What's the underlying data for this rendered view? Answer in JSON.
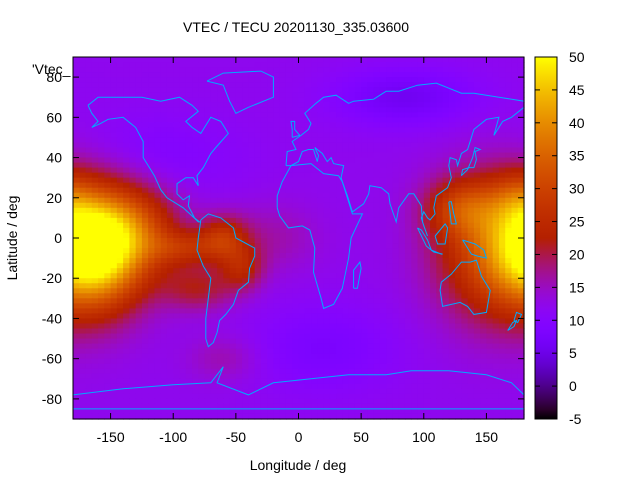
{
  "chart_data": {
    "type": "heatmap",
    "title": "VTEC / TECU 20201130_335.03600",
    "plot_label": "'Vtec_",
    "xlabel": "Longitude / deg",
    "ylabel": "Latitude / deg",
    "xlim": [
      -180,
      180
    ],
    "ylim": [
      -90,
      90
    ],
    "x_ticks": [
      "-150",
      "-100",
      "-50",
      "0",
      "50",
      "100",
      "150"
    ],
    "y_ticks": [
      "-80",
      "-60",
      "-40",
      "-20",
      "0",
      "20",
      "40",
      "60",
      "80"
    ],
    "colorbar": {
      "min": -5,
      "max": 50,
      "ticks": [
        "-5",
        "0",
        "5",
        "10",
        "15",
        "20",
        "25",
        "30",
        "35",
        "40",
        "45",
        "50"
      ]
    },
    "background_level": 12,
    "features": [
      {
        "lon": -160,
        "lat": -5,
        "sx": 28,
        "sy": 20,
        "amp": 36
      },
      {
        "lon": -125,
        "lat": 5,
        "sx": 25,
        "sy": 15,
        "amp": 10
      },
      {
        "lon": -90,
        "lat": -5,
        "sx": 20,
        "sy": 6,
        "amp": 10
      },
      {
        "lon": -60,
        "lat": 0,
        "sx": 14,
        "sy": 8,
        "amp": 13
      },
      {
        "lon": -45,
        "lat": -15,
        "sx": 12,
        "sy": 8,
        "amp": 10
      },
      {
        "lon": -80,
        "lat": -25,
        "sx": 20,
        "sy": 8,
        "amp": 9
      },
      {
        "lon": -20,
        "lat": 0,
        "sx": 25,
        "sy": 12,
        "amp": 4
      },
      {
        "lon": 160,
        "lat": -5,
        "sx": 35,
        "sy": 25,
        "amp": 20
      },
      {
        "lon": 130,
        "lat": 15,
        "sx": 20,
        "sy": 10,
        "amp": 12
      },
      {
        "lon": 175,
        "lat": 20,
        "sx": 15,
        "sy": 10,
        "amp": 6
      },
      {
        "lon": 85,
        "lat": 70,
        "sx": 40,
        "sy": 10,
        "amp": -6
      },
      {
        "lon": 20,
        "lat": -55,
        "sx": 40,
        "sy": 15,
        "amp": -4
      },
      {
        "lon": -60,
        "lat": -60,
        "sx": 20,
        "sy": 8,
        "amp": 4
      },
      {
        "lon": -120,
        "lat": 40,
        "sx": 50,
        "sy": 15,
        "amp": -3
      }
    ],
    "grid": false,
    "colormap": "gnuplot-pm3d",
    "coastline_color": "#00aaff",
    "coastlines": [
      [
        [
          -168,
          66
        ],
        [
          -160,
          70
        ],
        [
          -140,
          70
        ],
        [
          -125,
          70
        ],
        [
          -110,
          68
        ],
        [
          -95,
          70
        ],
        [
          -85,
          66
        ],
        [
          -80,
          63
        ],
        [
          -90,
          58
        ],
        [
          -85,
          55
        ],
        [
          -78,
          52
        ],
        [
          -70,
          60
        ],
        [
          -62,
          58
        ],
        [
          -56,
          52
        ],
        [
          -66,
          45
        ],
        [
          -70,
          42
        ],
        [
          -76,
          35
        ],
        [
          -81,
          31
        ],
        [
          -80,
          26
        ],
        [
          -84,
          30
        ],
        [
          -90,
          30
        ],
        [
          -97,
          27
        ],
        [
          -97,
          22
        ],
        [
          -92,
          19
        ],
        [
          -87,
          21
        ],
        [
          -88,
          16
        ],
        [
          -83,
          10
        ],
        [
          -79,
          8
        ],
        [
          -80,
          8
        ],
        [
          -85,
          11
        ],
        [
          -92,
          15
        ],
        [
          -105,
          20
        ],
        [
          -110,
          24
        ],
        [
          -115,
          31
        ],
        [
          -118,
          34
        ],
        [
          -124,
          40
        ],
        [
          -124,
          48
        ],
        [
          -130,
          55
        ],
        [
          -140,
          60
        ],
        [
          -152,
          59
        ],
        [
          -158,
          57
        ],
        [
          -165,
          55
        ],
        [
          -160,
          58
        ],
        [
          -165,
          62
        ],
        [
          -168,
          66
        ]
      ],
      [
        [
          -78,
          9
        ],
        [
          -72,
          12
        ],
        [
          -62,
          10
        ],
        [
          -52,
          5
        ],
        [
          -50,
          0
        ],
        [
          -44,
          -2
        ],
        [
          -35,
          -5
        ],
        [
          -35,
          -9
        ],
        [
          -39,
          -15
        ],
        [
          -40,
          -22
        ],
        [
          -48,
          -26
        ],
        [
          -52,
          -33
        ],
        [
          -58,
          -38
        ],
        [
          -63,
          -41
        ],
        [
          -65,
          -47
        ],
        [
          -68,
          -52
        ],
        [
          -72,
          -54
        ],
        [
          -74,
          -50
        ],
        [
          -74,
          -40
        ],
        [
          -72,
          -30
        ],
        [
          -70,
          -20
        ],
        [
          -76,
          -14
        ],
        [
          -81,
          -6
        ],
        [
          -80,
          0
        ],
        [
          -78,
          9
        ]
      ],
      [
        [
          -17,
          15
        ],
        [
          -17,
          21
        ],
        [
          -13,
          28
        ],
        [
          -6,
          36
        ],
        [
          10,
          37
        ],
        [
          20,
          32
        ],
        [
          32,
          31
        ],
        [
          35,
          28
        ],
        [
          43,
          12
        ],
        [
          51,
          12
        ],
        [
          42,
          0
        ],
        [
          40,
          -10
        ],
        [
          35,
          -25
        ],
        [
          28,
          -33
        ],
        [
          20,
          -35
        ],
        [
          18,
          -30
        ],
        [
          12,
          -17
        ],
        [
          13,
          -5
        ],
        [
          9,
          4
        ],
        [
          3,
          6
        ],
        [
          -8,
          5
        ],
        [
          -15,
          11
        ],
        [
          -17,
          15
        ]
      ],
      [
        [
          -10,
          36
        ],
        [
          -9,
          43
        ],
        [
          -2,
          44
        ],
        [
          -5,
          48
        ],
        [
          2,
          51
        ],
        [
          8,
          54
        ],
        [
          10,
          57
        ],
        [
          5,
          62
        ],
        [
          14,
          67
        ],
        [
          20,
          70
        ],
        [
          30,
          71
        ],
        [
          40,
          67
        ],
        [
          44,
          68
        ],
        [
          60,
          69
        ],
        [
          70,
          73
        ],
        [
          80,
          73
        ],
        [
          95,
          76
        ],
        [
          110,
          77
        ],
        [
          130,
          72
        ],
        [
          140,
          72
        ],
        [
          160,
          70
        ],
        [
          180,
          68
        ],
        [
          180,
          65
        ],
        [
          170,
          60
        ],
        [
          163,
          58
        ],
        [
          156,
          51
        ],
        [
          160,
          60
        ],
        [
          150,
          59
        ],
        [
          140,
          54
        ],
        [
          135,
          44
        ],
        [
          130,
          42
        ],
        [
          127,
          36
        ],
        [
          126,
          39
        ],
        [
          121,
          40
        ],
        [
          120,
          36
        ],
        [
          122,
          30
        ],
        [
          119,
          25
        ],
        [
          110,
          21
        ],
        [
          108,
          15
        ],
        [
          109,
          12
        ],
        [
          105,
          9
        ],
        [
          103,
          10
        ],
        [
          100,
          13
        ],
        [
          98,
          10
        ],
        [
          100,
          6
        ],
        [
          103,
          1
        ],
        [
          99,
          8
        ],
        [
          98,
          16
        ],
        [
          92,
          22
        ],
        [
          88,
          22
        ],
        [
          80,
          15
        ],
        [
          78,
          8
        ],
        [
          73,
          17
        ],
        [
          72,
          22
        ],
        [
          66,
          25
        ],
        [
          57,
          26
        ],
        [
          56,
          22
        ],
        [
          52,
          17
        ],
        [
          43,
          13
        ],
        [
          39,
          21
        ],
        [
          35,
          28
        ],
        [
          34,
          30
        ],
        [
          36,
          36
        ],
        [
          28,
          37
        ],
        [
          26,
          40
        ],
        [
          23,
          38
        ],
        [
          21,
          40
        ],
        [
          19,
          42
        ],
        [
          13,
          45
        ],
        [
          16,
          41
        ],
        [
          15,
          38
        ],
        [
          12,
          44
        ],
        [
          8,
          44
        ],
        [
          3,
          43
        ],
        [
          0,
          38
        ],
        [
          -6,
          36
        ],
        [
          -10,
          36
        ]
      ],
      [
        [
          114,
          -22
        ],
        [
          122,
          -18
        ],
        [
          130,
          -12
        ],
        [
          137,
          -12
        ],
        [
          142,
          -11
        ],
        [
          146,
          -19
        ],
        [
          153,
          -26
        ],
        [
          150,
          -37
        ],
        [
          140,
          -38
        ],
        [
          135,
          -34
        ],
        [
          129,
          -32
        ],
        [
          115,
          -34
        ],
        [
          113,
          -26
        ],
        [
          114,
          -22
        ]
      ],
      [
        [
          -73,
          78
        ],
        [
          -60,
          82
        ],
        [
          -30,
          83
        ],
        [
          -20,
          80
        ],
        [
          -20,
          70
        ],
        [
          -40,
          65
        ],
        [
          -50,
          62
        ],
        [
          -55,
          68
        ],
        [
          -60,
          76
        ],
        [
          -73,
          78
        ]
      ],
      [
        [
          -5,
          50
        ],
        [
          1,
          51
        ],
        [
          -3,
          54
        ],
        [
          -3,
          58
        ],
        [
          -6,
          58
        ],
        [
          -5,
          54
        ],
        [
          -5,
          50
        ]
      ],
      [
        [
          130,
          31
        ],
        [
          131,
          34
        ],
        [
          136,
          35
        ],
        [
          140,
          35
        ],
        [
          142,
          39
        ],
        [
          141,
          43
        ],
        [
          145,
          44
        ],
        [
          141,
          45
        ],
        [
          139,
          40
        ],
        [
          135,
          34
        ],
        [
          130,
          31
        ]
      ],
      [
        [
          95,
          5
        ],
        [
          98,
          4
        ],
        [
          103,
          -1
        ],
        [
          106,
          -6
        ],
        [
          102,
          -4
        ],
        [
          95,
          5
        ]
      ],
      [
        [
          106,
          -6
        ],
        [
          114,
          -8
        ],
        [
          115,
          -8
        ],
        [
          108,
          -7
        ],
        [
          106,
          -6
        ]
      ],
      [
        [
          109,
          1
        ],
        [
          117,
          7
        ],
        [
          119,
          5
        ],
        [
          117,
          -3
        ],
        [
          111,
          -3
        ],
        [
          109,
          1
        ]
      ],
      [
        [
          131,
          -1
        ],
        [
          141,
          -3
        ],
        [
          148,
          -6
        ],
        [
          150,
          -10
        ],
        [
          143,
          -9
        ],
        [
          138,
          -8
        ],
        [
          131,
          -1
        ]
      ],
      [
        [
          120,
          18
        ],
        [
          122,
          18
        ],
        [
          124,
          12
        ],
        [
          126,
          7
        ],
        [
          122,
          7
        ],
        [
          120,
          18
        ]
      ],
      [
        [
          44,
          -25
        ],
        [
          47,
          -25
        ],
        [
          50,
          -15
        ],
        [
          49,
          -12
        ],
        [
          44,
          -16
        ],
        [
          44,
          -25
        ]
      ],
      [
        [
          172,
          -41
        ],
        [
          174,
          -37
        ],
        [
          178,
          -38
        ],
        [
          175,
          -42
        ],
        [
          172,
          -41
        ]
      ],
      [
        [
          167,
          -46
        ],
        [
          172,
          -44
        ],
        [
          174,
          -41
        ],
        [
          171,
          -42
        ],
        [
          167,
          -46
        ]
      ],
      [
        [
          -180,
          -78
        ],
        [
          -140,
          -75
        ],
        [
          -100,
          -73
        ],
        [
          -70,
          -72
        ],
        [
          -60,
          -64
        ],
        [
          -65,
          -72
        ],
        [
          -40,
          -78
        ],
        [
          -20,
          -72
        ],
        [
          10,
          -70
        ],
        [
          40,
          -68
        ],
        [
          70,
          -68
        ],
        [
          90,
          -66
        ],
        [
          120,
          -66
        ],
        [
          150,
          -68
        ],
        [
          170,
          -72
        ],
        [
          180,
          -78
        ]
      ],
      [
        [
          -180,
          -85
        ],
        [
          180,
          -85
        ]
      ]
    ]
  }
}
